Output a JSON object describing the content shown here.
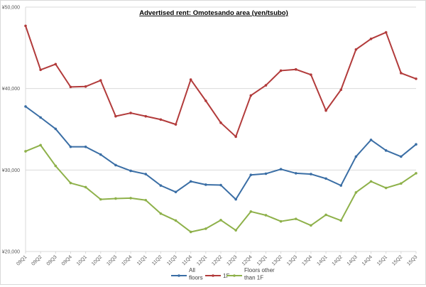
{
  "chart_data": {
    "type": "line",
    "title": "Advertised rent: Omotesando area (yen/tsubo)",
    "xlabel": "",
    "ylabel": "",
    "ylim": [
      20000,
      50000
    ],
    "yticks": [
      20000,
      30000,
      40000,
      50000
    ],
    "ytick_labels": [
      "¥20,000",
      "¥30,000",
      "¥40,000",
      "¥50,000"
    ],
    "grid": true,
    "legend_position": "bottom",
    "categories": [
      "09Q1",
      "09Q2",
      "09Q3",
      "09Q4",
      "10Q1",
      "10Q2",
      "10Q3",
      "10Q4",
      "11Q1",
      "11Q2",
      "11Q3",
      "11Q4",
      "12Q1",
      "12Q2",
      "12Q3",
      "12Q4",
      "13Q1",
      "13Q2",
      "13Q3",
      "13Q4",
      "14Q1",
      "14Q2",
      "14Q3",
      "14Q4",
      "15Q1",
      "15Q2",
      "15Q3"
    ],
    "series": [
      {
        "name": "All floors",
        "legend_lines": [
          "All",
          "floors"
        ],
        "color": "#3a6ea5",
        "values": [
          37800,
          36450,
          35050,
          32850,
          32850,
          31900,
          30600,
          29900,
          29500,
          28100,
          27300,
          28600,
          28200,
          28150,
          26400,
          29400,
          29550,
          30100,
          29600,
          29500,
          28950,
          28100,
          31650,
          33700,
          32400,
          31650,
          33150
        ]
      },
      {
        "name": "1F",
        "legend_lines": [
          "1F"
        ],
        "color": "#b23b3b",
        "values": [
          47700,
          42300,
          43000,
          40200,
          40250,
          41000,
          36600,
          37000,
          36600,
          36200,
          35600,
          41100,
          38500,
          35800,
          34100,
          39150,
          40400,
          42200,
          42350,
          41700,
          37300,
          39850,
          44800,
          46100,
          46900,
          41900,
          41200
        ]
      },
      {
        "name": "Floors other than 1F",
        "legend_lines": [
          "Floors other",
          "than 1F"
        ],
        "color": "#8eb14a",
        "values": [
          32300,
          33050,
          30500,
          28400,
          27900,
          26400,
          26500,
          26550,
          26300,
          24650,
          23800,
          22400,
          22800,
          23850,
          22600,
          24900,
          24450,
          23700,
          24000,
          23200,
          24500,
          23800,
          27250,
          28600,
          27800,
          28350,
          29600
        ]
      }
    ]
  }
}
